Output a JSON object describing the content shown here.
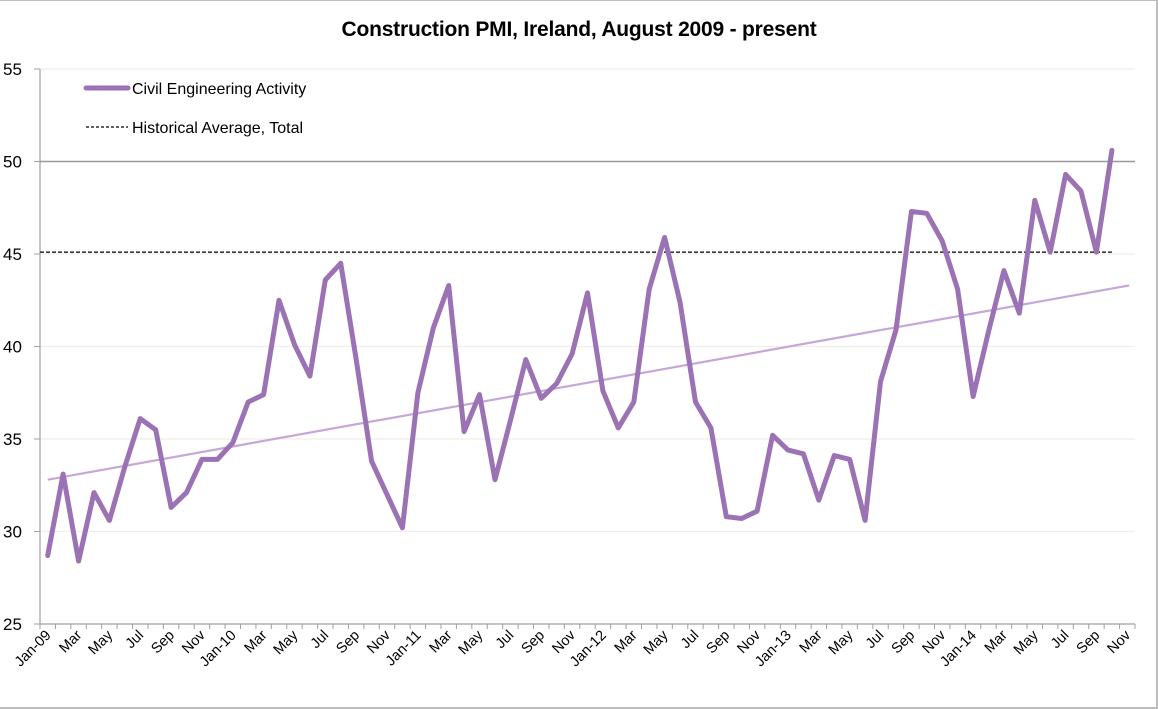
{
  "chart_data": {
    "type": "line",
    "title": "Construction PMI, Ireland, August 2009 - present",
    "xlabel": "",
    "ylabel": "",
    "ylim": [
      25,
      55
    ],
    "yticks": [
      25,
      30,
      35,
      40,
      45,
      50,
      55
    ],
    "grid": true,
    "legend_position": "top-left",
    "categories": [
      "Jan-09",
      "Feb-09",
      "Mar-09",
      "Apr-09",
      "May-09",
      "Jun-09",
      "Jul-09",
      "Aug-09",
      "Sep-09",
      "Oct-09",
      "Nov-09",
      "Dec-09",
      "Jan-10",
      "Feb-10",
      "Mar-10",
      "Apr-10",
      "May-10",
      "Jun-10",
      "Jul-10",
      "Aug-10",
      "Sep-10",
      "Oct-10",
      "Nov-10",
      "Dec-10",
      "Jan-11",
      "Feb-11",
      "Mar-11",
      "Apr-11",
      "May-11",
      "Jun-11",
      "Jul-11",
      "Aug-11",
      "Sep-11",
      "Oct-11",
      "Nov-11",
      "Dec-11",
      "Jan-12",
      "Feb-12",
      "Mar-12",
      "Apr-12",
      "May-12",
      "Jun-12",
      "Jul-12",
      "Aug-12",
      "Sep-12",
      "Oct-12",
      "Nov-12",
      "Dec-12",
      "Jan-13",
      "Feb-13",
      "Mar-13",
      "Apr-13",
      "May-13",
      "Jun-13",
      "Jul-13",
      "Aug-13",
      "Sep-13",
      "Oct-13",
      "Nov-13",
      "Dec-13",
      "Jan-14",
      "Feb-14",
      "Mar-14",
      "Apr-14",
      "May-14",
      "Jun-14",
      "Jul-14",
      "Aug-14",
      "Sep-14",
      "Oct-14",
      "Nov-14"
    ],
    "tick_labels": [
      "Jan-09",
      "Mar",
      "May",
      "Jul",
      "Sep",
      "Nov",
      "Jan-10",
      "Mar",
      "May",
      "Jul",
      "Sep",
      "Nov",
      "Jan-11",
      "Mar",
      "May",
      "Jul",
      "Sep",
      "Nov",
      "Jan-12",
      "Mar",
      "May",
      "Jul",
      "Sep",
      "Nov",
      "Jan-13",
      "Mar",
      "May",
      "Jul",
      "Sep",
      "Nov",
      "Jan-14",
      "Mar",
      "May",
      "Jul",
      "Sep",
      "Nov"
    ],
    "tick_label_every": 2,
    "series": [
      {
        "name": "Civil Engineering Activity",
        "color": "#9b72b4",
        "style": "solid-thick",
        "values": [
          28.7,
          33.1,
          28.4,
          32.1,
          30.6,
          33.5,
          36.1,
          35.5,
          31.3,
          32.1,
          33.9,
          33.9,
          34.8,
          37.0,
          37.4,
          42.5,
          40.1,
          38.4,
          43.6,
          44.5,
          39.3,
          33.8,
          32.0,
          30.2,
          37.5,
          41.0,
          43.3,
          35.4,
          37.4,
          32.8,
          36.0,
          39.3,
          37.2,
          38.0,
          39.6,
          42.9,
          37.6,
          35.6,
          37.0,
          43.1,
          45.9,
          42.4,
          37.0,
          35.6,
          30.8,
          30.7,
          31.1,
          35.2,
          34.4,
          34.2,
          31.7,
          34.1,
          33.9,
          30.6,
          38.1,
          40.9,
          47.3,
          47.2,
          45.7,
          43.1,
          37.3,
          40.8,
          44.1,
          41.8,
          47.9,
          45.1,
          49.3,
          48.4,
          45.1,
          50.6,
          null
        ]
      },
      {
        "name": "Historical Average, Total",
        "color": "#000000",
        "style": "dashed",
        "constant": 45.1
      },
      {
        "name": "Linear trend (Civil Engineering Activity)",
        "color": "#c5a8d6",
        "style": "solid-thin",
        "start_value": 32.8,
        "end_value": 43.3,
        "show_in_legend": false
      }
    ],
    "reference_line": {
      "value": 50,
      "color": "#999999"
    }
  },
  "legend": {
    "items": [
      {
        "label": "Civil Engineering Activity"
      },
      {
        "label": "Historical Average, Total"
      }
    ]
  }
}
